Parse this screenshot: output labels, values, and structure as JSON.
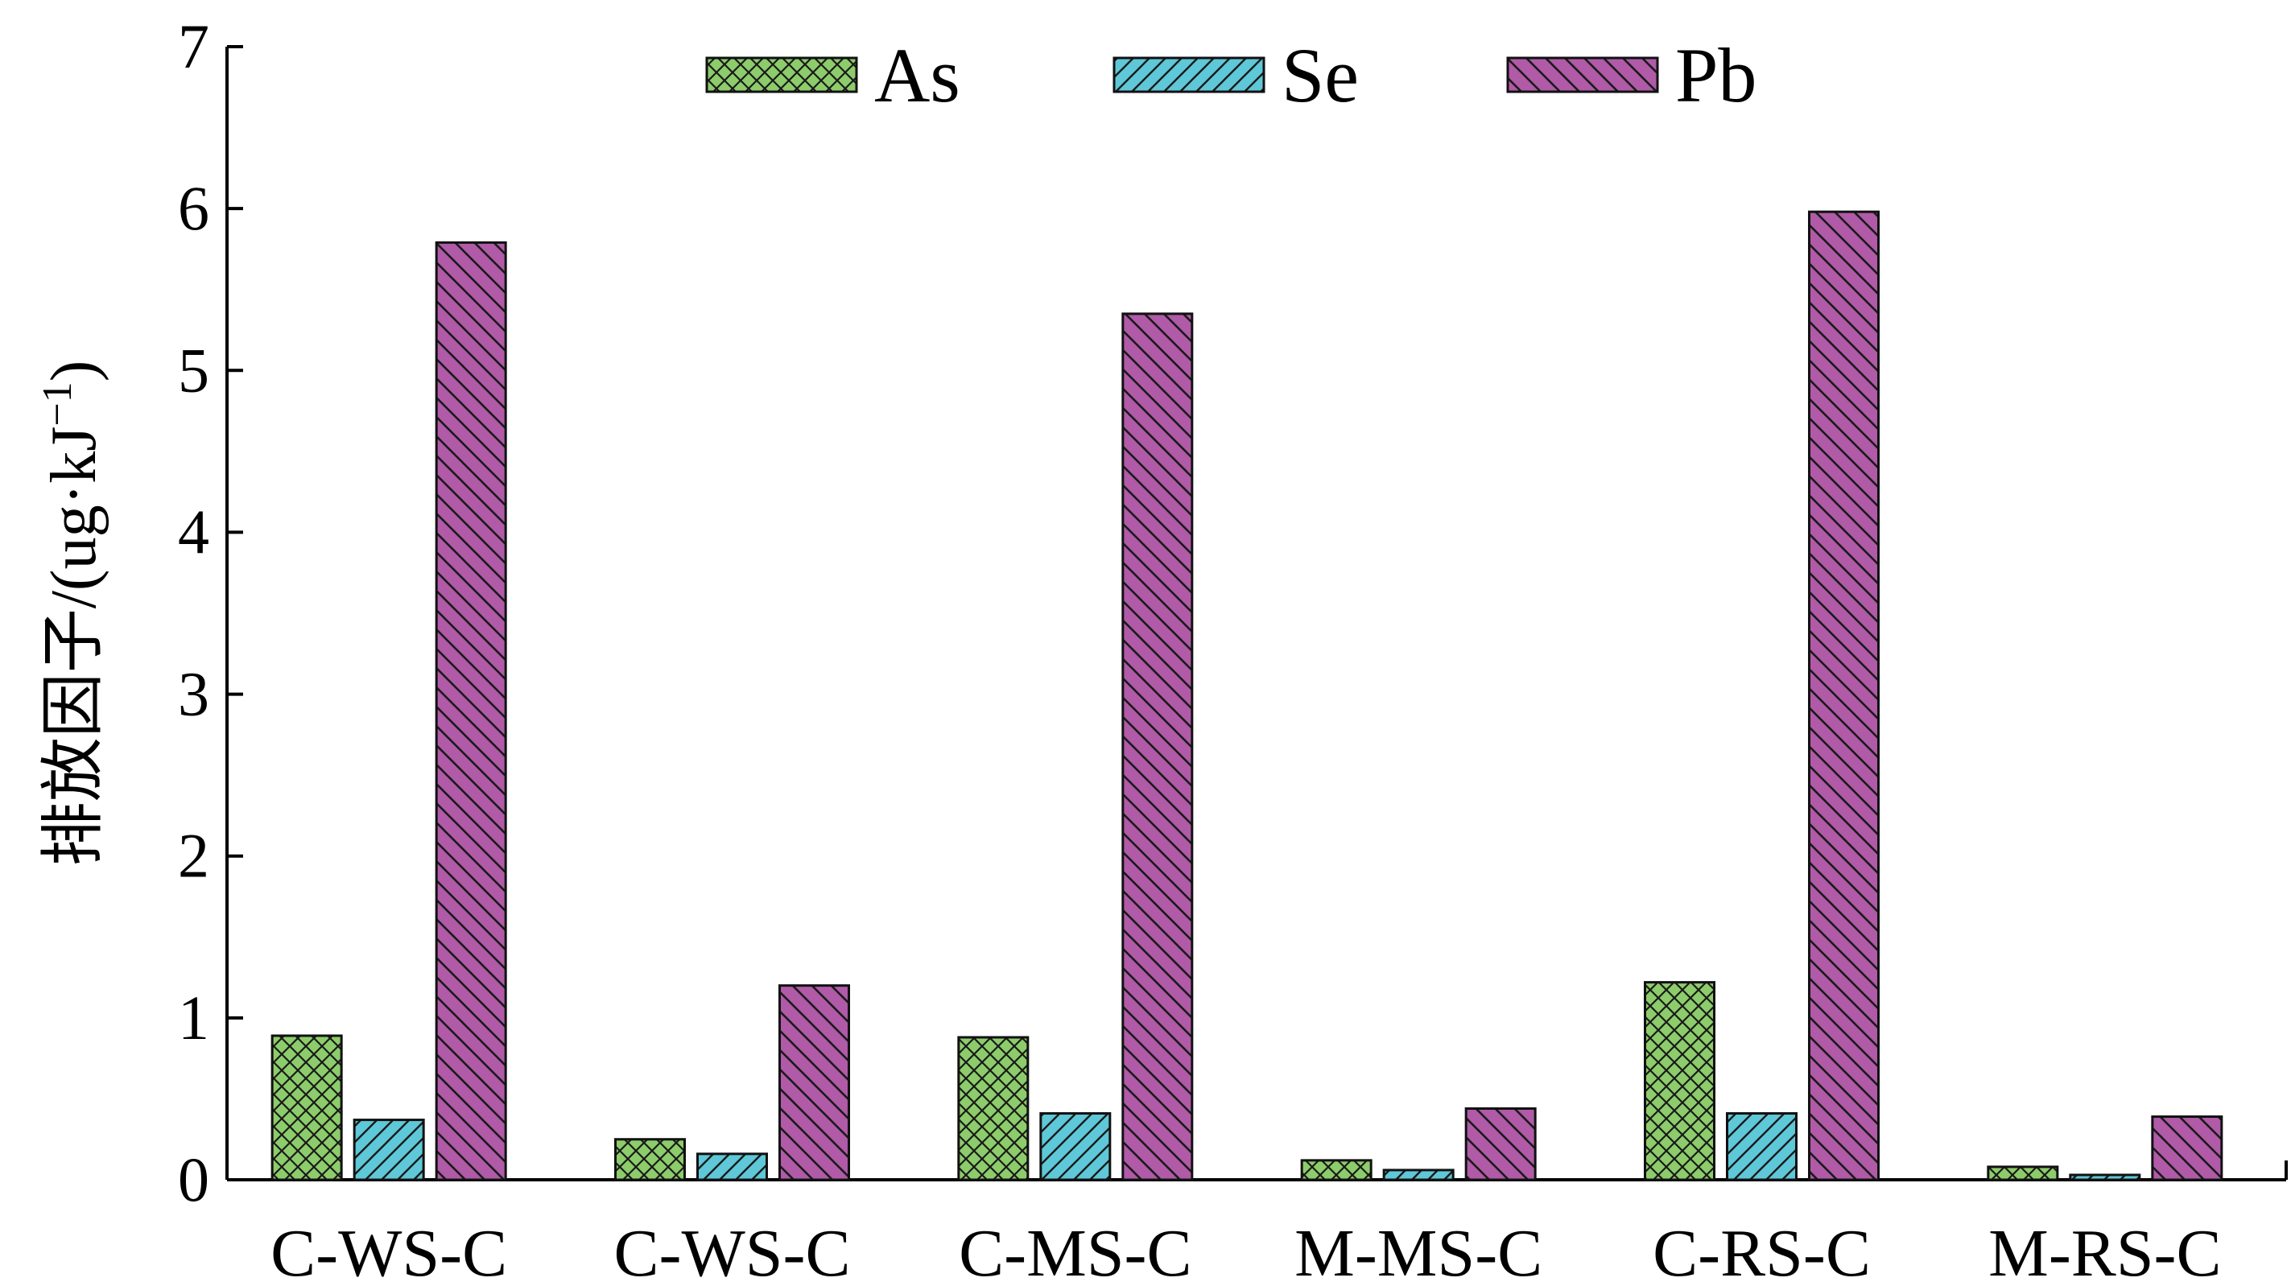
{
  "chart_data": {
    "type": "bar",
    "title": "",
    "xlabel": "",
    "ylabel": "排放因子/(ug·kJ",
    "ylabel_superscript": "−1",
    "ylabel_close": ")",
    "ylim": [
      0,
      7
    ],
    "yticks": [
      0,
      1,
      2,
      3,
      4,
      5,
      6,
      7
    ],
    "categories": [
      "C-WS-C",
      "C-WS-C",
      "C-MS-C",
      "M-MS-C",
      "C-RS-C",
      "M-RS-C"
    ],
    "series": [
      {
        "name": "As",
        "values": [
          0.89,
          0.25,
          0.88,
          0.12,
          1.22,
          0.08
        ],
        "color": "#8dcc6a",
        "pattern": "crosshatch"
      },
      {
        "name": "Se",
        "values": [
          0.37,
          0.16,
          0.41,
          0.06,
          0.41,
          0.03
        ],
        "color": "#5ec8d8",
        "pattern": "forward-diagonal"
      },
      {
        "name": "Pb",
        "values": [
          5.79,
          1.2,
          5.35,
          0.44,
          5.98,
          0.39
        ],
        "color": "#b05aa8",
        "pattern": "back-diagonal"
      }
    ],
    "legend": {
      "position": "top-center"
    },
    "grid": false
  }
}
